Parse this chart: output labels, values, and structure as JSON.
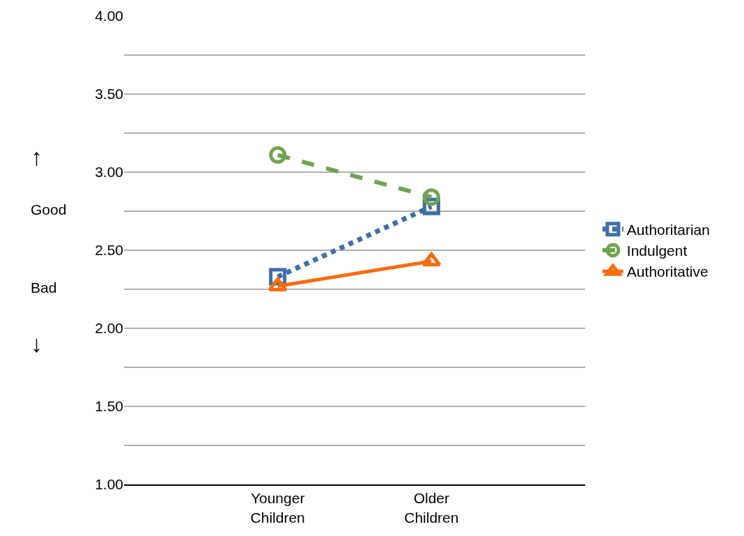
{
  "chart_data": {
    "type": "line",
    "categories": [
      "Younger Children",
      "Older Children"
    ],
    "series": [
      {
        "name": "Authoritarian",
        "color": "#3d6fa8",
        "values": [
          2.33,
          2.78
        ],
        "marker": "square",
        "line_style": "dotted"
      },
      {
        "name": "Indulgent",
        "color": "#6ea44f",
        "values": [
          3.11,
          2.84
        ],
        "marker": "circle",
        "line_style": "dashed"
      },
      {
        "name": "Authoritative",
        "color": "#f96b0f",
        "values": [
          2.27,
          2.43
        ],
        "marker": "triangle",
        "line_style": "solid"
      }
    ],
    "ylim": [
      1,
      4
    ],
    "yticks": [
      {
        "value": 1,
        "label": "1.00"
      },
      {
        "value": 1.25,
        "label": null
      },
      {
        "value": 1.5,
        "label": "1.50"
      },
      {
        "value": 1.75,
        "label": null
      },
      {
        "value": 2,
        "label": "2.00"
      },
      {
        "value": 2.25,
        "label": null
      },
      {
        "value": 2.5,
        "label": "2.50"
      },
      {
        "value": 2.75,
        "label": null
      },
      {
        "value": 3,
        "label": "3.00"
      },
      {
        "value": 3.25,
        "label": null
      },
      {
        "value": 3.5,
        "label": "3.50"
      },
      {
        "value": 3.75,
        "label": null
      },
      {
        "value": 4,
        "label": "4.00"
      }
    ],
    "annotations": [
      "↑",
      "Good",
      "Bad",
      "↓"
    ],
    "grid": "y",
    "legend": "right"
  }
}
